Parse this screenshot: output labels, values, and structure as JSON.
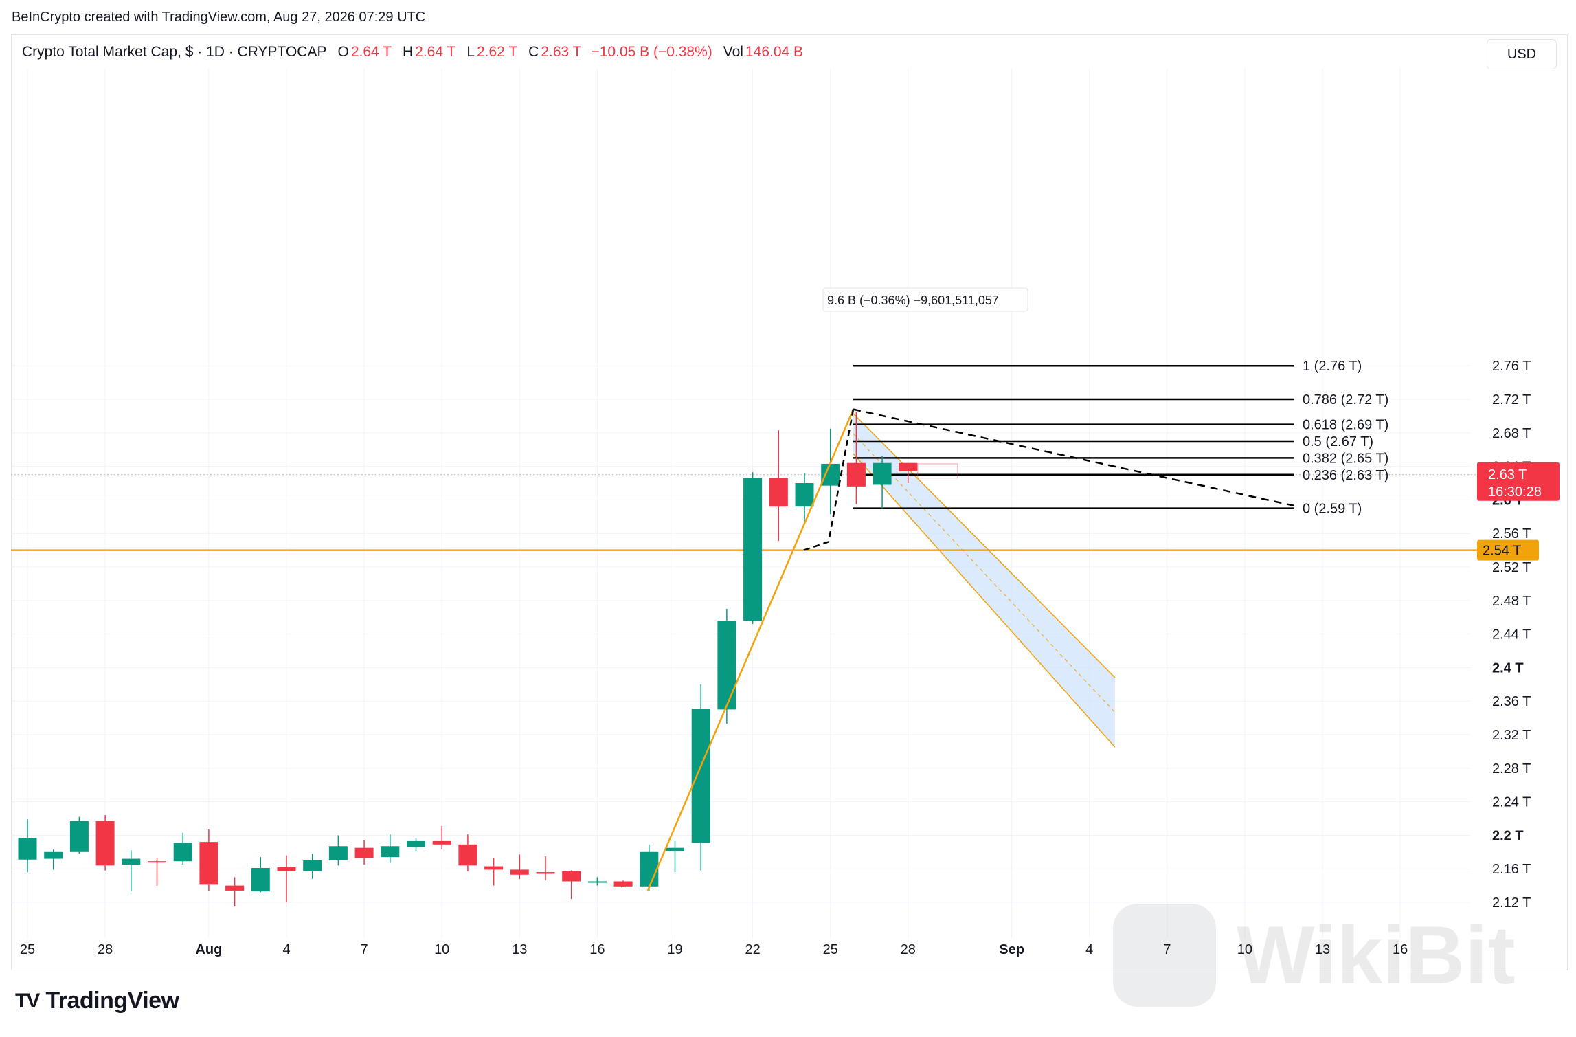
{
  "header": {
    "attribution": "BeInCrypto created with TradingView.com, Aug 27, 2026 07:29 UTC"
  },
  "legend": {
    "symbol": "Crypto Total Market Cap, $ · 1D · CRYPTOCAP",
    "o_label": "O",
    "o_value": "2.64 T",
    "h_label": "H",
    "h_value": "2.64 T",
    "l_label": "L",
    "l_value": "2.62 T",
    "c_label": "C",
    "c_value": "2.63 T",
    "change": "−10.05 B (−0.38%)",
    "vol_label": "Vol",
    "vol_value": "146.04 B"
  },
  "currency_button": "USD",
  "branding": {
    "logo_mark": "TV",
    "name": "TradingView",
    "watermark": "WikiBit"
  },
  "colors": {
    "up": "#089981",
    "down": "#f23645",
    "orange": "#f0a30a",
    "fill": "#cfe3fb",
    "grid": "#f0f3fa"
  },
  "chart_data": {
    "type": "candlestick",
    "title": "Crypto Total Market Cap, $ · 1D · CRYPTOCAP",
    "interval": "1D",
    "x_ticks": [
      "25",
      "28",
      "Aug",
      "4",
      "7",
      "10",
      "13",
      "16",
      "19",
      "22",
      "25",
      "28",
      "Sep",
      "4",
      "7",
      "10",
      "13",
      "16"
    ],
    "y_ticks": [
      "2.12 T",
      "2.16 T",
      "2.2 T",
      "2.24 T",
      "2.28 T",
      "2.32 T",
      "2.36 T",
      "2.4 T",
      "2.44 T",
      "2.48 T",
      "2.52 T",
      "2.56 T",
      "2.6 T",
      "2.64 T",
      "2.68 T",
      "2.72 T",
      "2.76 T"
    ],
    "y_bold_ticks": [
      "2.2 T",
      "2.4 T",
      "2.6 T"
    ],
    "ylim": [
      2.1,
      2.78
    ],
    "candles": [
      {
        "o": 2.171,
        "h": 2.219,
        "l": 2.156,
        "c": 2.197
      },
      {
        "o": 2.172,
        "h": 2.183,
        "l": 2.159,
        "c": 2.18
      },
      {
        "o": 2.18,
        "h": 2.222,
        "l": 2.178,
        "c": 2.217
      },
      {
        "o": 2.217,
        "h": 2.224,
        "l": 2.158,
        "c": 2.164
      },
      {
        "o": 2.165,
        "h": 2.182,
        "l": 2.133,
        "c": 2.172
      },
      {
        "o": 2.169,
        "h": 2.173,
        "l": 2.14,
        "c": 2.168
      },
      {
        "o": 2.169,
        "h": 2.203,
        "l": 2.165,
        "c": 2.191
      },
      {
        "o": 2.192,
        "h": 2.207,
        "l": 2.134,
        "c": 2.141
      },
      {
        "o": 2.14,
        "h": 2.15,
        "l": 2.115,
        "c": 2.134
      },
      {
        "o": 2.133,
        "h": 2.174,
        "l": 2.132,
        "c": 2.161
      },
      {
        "o": 2.162,
        "h": 2.176,
        "l": 2.12,
        "c": 2.157
      },
      {
        "o": 2.157,
        "h": 2.178,
        "l": 2.148,
        "c": 2.17
      },
      {
        "o": 2.17,
        "h": 2.2,
        "l": 2.164,
        "c": 2.187
      },
      {
        "o": 2.185,
        "h": 2.194,
        "l": 2.165,
        "c": 2.173
      },
      {
        "o": 2.174,
        "h": 2.201,
        "l": 2.167,
        "c": 2.187
      },
      {
        "o": 2.186,
        "h": 2.197,
        "l": 2.181,
        "c": 2.193
      },
      {
        "o": 2.193,
        "h": 2.211,
        "l": 2.183,
        "c": 2.189
      },
      {
        "o": 2.189,
        "h": 2.201,
        "l": 2.157,
        "c": 2.164
      },
      {
        "o": 2.163,
        "h": 2.173,
        "l": 2.14,
        "c": 2.159
      },
      {
        "o": 2.159,
        "h": 2.177,
        "l": 2.148,
        "c": 2.153
      },
      {
        "o": 2.156,
        "h": 2.175,
        "l": 2.146,
        "c": 2.154
      },
      {
        "o": 2.157,
        "h": 2.158,
        "l": 2.124,
        "c": 2.145
      },
      {
        "o": 2.145,
        "h": 2.15,
        "l": 2.14,
        "c": 2.145
      },
      {
        "o": 2.145,
        "h": 2.146,
        "l": 2.138,
        "c": 2.139
      },
      {
        "o": 2.139,
        "h": 2.189,
        "l": 2.134,
        "c": 2.18
      },
      {
        "o": 2.181,
        "h": 2.193,
        "l": 2.156,
        "c": 2.185
      },
      {
        "o": 2.191,
        "h": 2.38,
        "l": 2.158,
        "c": 2.351
      },
      {
        "o": 2.35,
        "h": 2.47,
        "l": 2.333,
        "c": 2.456
      },
      {
        "o": 2.456,
        "h": 2.633,
        "l": 2.452,
        "c": 2.626
      },
      {
        "o": 2.626,
        "h": 2.683,
        "l": 2.551,
        "c": 2.592
      },
      {
        "o": 2.592,
        "h": 2.632,
        "l": 2.575,
        "c": 2.62
      },
      {
        "o": 2.617,
        "h": 2.685,
        "l": 2.583,
        "c": 2.643
      },
      {
        "o": 2.644,
        "h": 2.705,
        "l": 2.595,
        "c": 2.616
      },
      {
        "o": 2.618,
        "h": 2.652,
        "l": 2.59,
        "c": 2.644
      },
      {
        "o": 2.644,
        "h": 2.644,
        "l": 2.62,
        "c": 2.634
      }
    ],
    "horizontal_line": {
      "price": 2.54,
      "label": "2.54 T"
    },
    "last_price": {
      "price": 2.63,
      "label": "2.63 T",
      "countdown": "16:30:28"
    },
    "fibonacci": [
      {
        "ratio": "1",
        "price": 2.76,
        "label": "1 (2.76 T)"
      },
      {
        "ratio": "0.786",
        "price": 2.72,
        "label": "0.786 (2.72 T)"
      },
      {
        "ratio": "0.618",
        "price": 2.69,
        "label": "0.618 (2.69 T)"
      },
      {
        "ratio": "0.5",
        "price": 2.67,
        "label": "0.5 (2.67 T)"
      },
      {
        "ratio": "0.382",
        "price": 2.65,
        "label": "0.382 (2.65 T)"
      },
      {
        "ratio": "0.236",
        "price": 2.63,
        "label": "0.236 (2.63 T)"
      },
      {
        "ratio": "0",
        "price": 2.59,
        "label": "0 (2.59 T)"
      }
    ],
    "trendline": {
      "from_price": 2.134,
      "to_price": 2.708
    },
    "projection": {
      "from_price": 2.708,
      "to_price": 2.593
    },
    "measure_tooltip": "9.6 B (−0.36%) −9,601,511,057",
    "channel": {
      "top_start": 2.703,
      "bottom_start": 2.655,
      "top_end": 2.388,
      "bottom_end": 2.305
    }
  }
}
